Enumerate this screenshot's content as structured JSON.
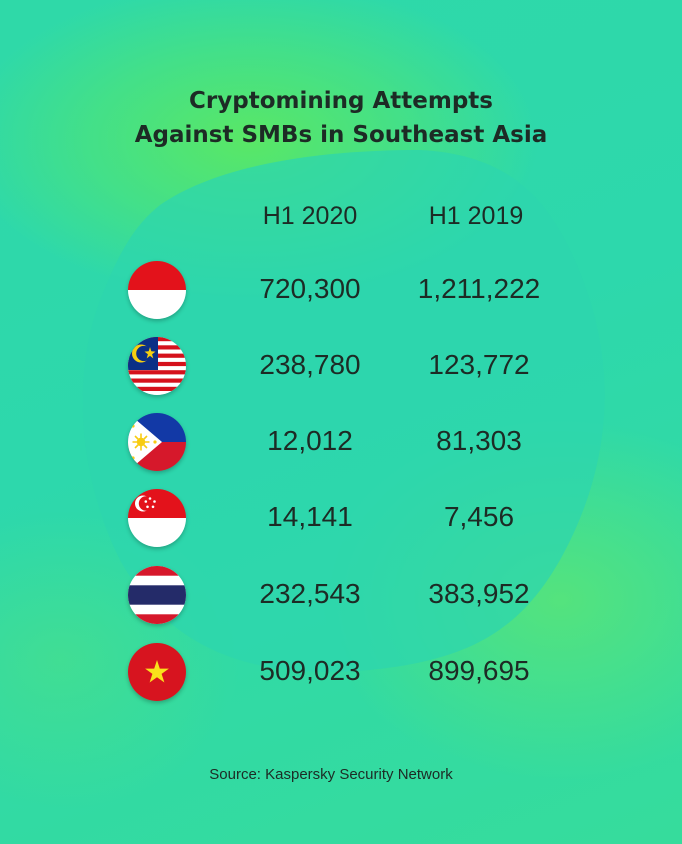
{
  "title_lines": [
    "Cryptomining Attempts",
    "Against SMBs in Southeast Asia"
  ],
  "source": "Source: Kaspersky Security Network",
  "colors": {
    "background": "#2dd8ac",
    "glow": "#5ce862",
    "text": "#1d2b25"
  },
  "chart_data": {
    "type": "table",
    "title": "Cryptomining Attempts Against SMBs in Southeast Asia",
    "columns": [
      "H1 2020",
      "H1 2019"
    ],
    "rows": [
      {
        "flag": "indonesia-flag-icon",
        "values": [
          "720,300",
          "1,211,222"
        ]
      },
      {
        "flag": "malaysia-flag-icon",
        "values": [
          "238,780",
          "123,772"
        ]
      },
      {
        "flag": "philippines-flag-icon",
        "values": [
          "12,012",
          "81,303"
        ]
      },
      {
        "flag": "singapore-flag-icon",
        "values": [
          "14,141",
          "7,456"
        ]
      },
      {
        "flag": "thailand-flag-icon",
        "values": [
          "232,543",
          "383,952"
        ]
      },
      {
        "flag": "vietnam-flag-icon",
        "values": [
          "509,023",
          "899,695"
        ]
      }
    ]
  }
}
